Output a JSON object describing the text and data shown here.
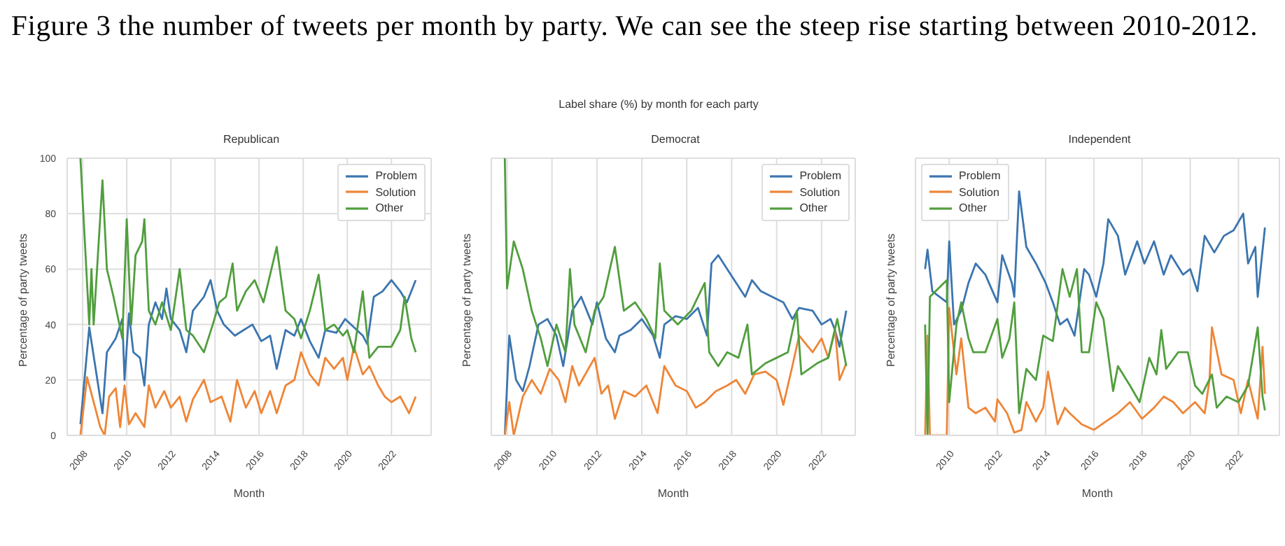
{
  "chart_data": [
    {
      "type": "other",
      "title": "Label share (%) by month for each party",
      "annotations": [
        "Figure 3 the number of tweets per month by party. We can see the steep rise starting between 2010-2012."
      ]
    },
    {
      "type": "line",
      "title": "Republican",
      "xlabel": "Month",
      "ylabel": "Percentage of party tweets",
      "xlim": [
        2007.3,
        2023.8
      ],
      "xticks": [
        2008,
        2010,
        2012,
        2014,
        2016,
        2018,
        2020,
        2022
      ],
      "ylim": [
        0,
        100
      ],
      "yticks": [
        0,
        20,
        40,
        60,
        80,
        100
      ],
      "grid": true,
      "legend": "top right",
      "marker": "none",
      "line_style": "solid",
      "series": [
        {
          "name": "Problem",
          "color": "#3b75af",
          "x": [
            2007.9,
            2008.3,
            2008.9,
            2009.1,
            2009.5,
            2009.8,
            2009.9,
            2010.1,
            2010.3,
            2010.6,
            2010.8,
            2011.0,
            2011.3,
            2011.6,
            2011.8,
            2012.0,
            2012.4,
            2012.7,
            2013.0,
            2013.5,
            2013.8,
            2014.1,
            2014.4,
            2014.9,
            2015.3,
            2015.7,
            2016.1,
            2016.5,
            2016.8,
            2017.2,
            2017.6,
            2017.9,
            2018.3,
            2018.7,
            2019.0,
            2019.5,
            2019.9,
            2020.3,
            2020.7,
            2020.9,
            2021.2,
            2021.6,
            2022.0,
            2022.4,
            2022.7,
            2023.1
          ],
          "values": [
            4,
            39,
            8,
            30,
            35,
            42,
            20,
            44,
            30,
            28,
            18,
            40,
            48,
            42,
            53,
            42,
            38,
            30,
            45,
            50,
            56,
            45,
            40,
            36,
            38,
            40,
            34,
            36,
            24,
            38,
            36,
            42,
            34,
            28,
            38,
            37,
            42,
            39,
            36,
            33,
            50,
            52,
            56,
            52,
            48,
            56
          ]
        },
        {
          "name": "Solution",
          "color": "#ef8536",
          "x": [
            2007.9,
            2008.2,
            2008.5,
            2008.8,
            2009.0,
            2009.2,
            2009.5,
            2009.7,
            2009.9,
            2010.1,
            2010.4,
            2010.8,
            2011.0,
            2011.3,
            2011.7,
            2012.0,
            2012.4,
            2012.7,
            2013.0,
            2013.5,
            2013.8,
            2014.3,
            2014.7,
            2015.0,
            2015.4,
            2015.8,
            2016.1,
            2016.5,
            2016.8,
            2017.2,
            2017.6,
            2017.9,
            2018.3,
            2018.7,
            2019.0,
            2019.4,
            2019.8,
            2020.0,
            2020.3,
            2020.7,
            2021.0,
            2021.4,
            2021.7,
            2022.0,
            2022.4,
            2022.8,
            2023.1
          ],
          "values": [
            0,
            21,
            12,
            3,
            0,
            14,
            17,
            3,
            18,
            4,
            8,
            3,
            18,
            10,
            16,
            10,
            14,
            5,
            13,
            20,
            12,
            14,
            5,
            20,
            10,
            16,
            8,
            16,
            8,
            18,
            20,
            30,
            22,
            18,
            28,
            24,
            28,
            20,
            32,
            22,
            25,
            18,
            14,
            12,
            14,
            8,
            14
          ]
        },
        {
          "name": "Other",
          "color": "#519e3e",
          "x": [
            2007.9,
            2008.1,
            2008.3,
            2008.4,
            2008.5,
            2008.9,
            2009.1,
            2009.4,
            2009.8,
            2010.0,
            2010.2,
            2010.4,
            2010.7,
            2010.8,
            2011.0,
            2011.3,
            2011.6,
            2012.0,
            2012.4,
            2012.7,
            2013.0,
            2013.5,
            2013.9,
            2014.2,
            2014.5,
            2014.8,
            2015.0,
            2015.4,
            2015.8,
            2016.2,
            2016.5,
            2016.8,
            2017.2,
            2017.6,
            2017.9,
            2018.3,
            2018.7,
            2019.0,
            2019.4,
            2019.8,
            2020.0,
            2020.3,
            2020.7,
            2021.0,
            2021.4,
            2022.0,
            2022.4,
            2022.6,
            2022.9,
            2023.1
          ],
          "values": [
            100,
            70,
            40,
            60,
            40,
            92,
            60,
            50,
            35,
            78,
            40,
            65,
            70,
            78,
            45,
            40,
            48,
            38,
            60,
            38,
            36,
            30,
            40,
            48,
            50,
            62,
            45,
            52,
            56,
            48,
            58,
            68,
            45,
            42,
            35,
            45,
            58,
            38,
            40,
            36,
            38,
            30,
            52,
            28,
            32,
            32,
            38,
            50,
            35,
            30
          ]
        }
      ]
    },
    {
      "type": "line",
      "title": "Democrat",
      "xlabel": "Month",
      "ylabel": "Percentage of party tweets",
      "xlim": [
        2007.3,
        2023.5
      ],
      "xticks": [
        2008,
        2010,
        2012,
        2014,
        2016,
        2018,
        2020,
        2022
      ],
      "ylim": [
        0,
        100
      ],
      "yticks": [
        0,
        20,
        40,
        60,
        80,
        100
      ],
      "tick_labels": "x",
      "grid": true,
      "legend": "top right",
      "marker": "none",
      "line_style": "solid",
      "series": [
        {
          "name": "Problem",
          "color": "#3b75af",
          "x": [
            2007.9,
            2008.1,
            2008.4,
            2008.7,
            2009.0,
            2009.4,
            2009.8,
            2010.2,
            2010.5,
            2010.9,
            2011.3,
            2011.8,
            2012.0,
            2012.4,
            2012.8,
            2013.0,
            2013.5,
            2014.0,
            2014.5,
            2014.8,
            2015.0,
            2015.5,
            2016.0,
            2016.5,
            2016.9,
            2017.1,
            2017.4,
            2017.8,
            2018.2,
            2018.6,
            2018.9,
            2019.3,
            2019.8,
            2020.3,
            2020.7,
            2021.0,
            2021.6,
            2022.0,
            2022.4,
            2022.6,
            2022.8,
            2023.1
          ],
          "values": [
            0,
            36,
            20,
            16,
            25,
            40,
            42,
            36,
            25,
            45,
            50,
            40,
            48,
            35,
            30,
            36,
            38,
            42,
            36,
            28,
            40,
            43,
            42,
            46,
            36,
            62,
            65,
            60,
            55,
            50,
            56,
            52,
            50,
            48,
            42,
            46,
            45,
            40,
            42,
            38,
            32,
            45
          ]
        },
        {
          "name": "Solution",
          "color": "#ef8536",
          "x": [
            2007.9,
            2008.1,
            2008.3,
            2008.7,
            2009.1,
            2009.5,
            2009.9,
            2010.3,
            2010.6,
            2010.9,
            2011.2,
            2011.9,
            2012.2,
            2012.5,
            2012.8,
            2013.2,
            2013.7,
            2014.2,
            2014.7,
            2015.0,
            2015.5,
            2016.0,
            2016.4,
            2016.8,
            2017.3,
            2017.8,
            2018.2,
            2018.6,
            2019.0,
            2019.5,
            2020.0,
            2020.3,
            2020.7,
            2021.0,
            2021.6,
            2022.0,
            2022.3,
            2022.6,
            2022.8,
            2023.1
          ],
          "values": [
            0,
            12,
            0,
            14,
            20,
            15,
            24,
            20,
            12,
            25,
            18,
            28,
            15,
            18,
            6,
            16,
            14,
            18,
            8,
            25,
            18,
            16,
            10,
            12,
            16,
            18,
            20,
            15,
            22,
            23,
            20,
            11,
            25,
            36,
            30,
            35,
            28,
            38,
            20,
            26
          ]
        },
        {
          "name": "Other",
          "color": "#519e3e",
          "x": [
            2007.9,
            2008.0,
            2008.3,
            2008.7,
            2009.1,
            2009.5,
            2009.8,
            2010.2,
            2010.6,
            2010.8,
            2011.0,
            2011.5,
            2011.9,
            2012.3,
            2012.8,
            2013.2,
            2013.7,
            2014.2,
            2014.6,
            2014.8,
            2015.0,
            2015.6,
            2016.2,
            2016.8,
            2017.0,
            2017.4,
            2017.8,
            2018.3,
            2018.7,
            2018.9,
            2019.5,
            2020.0,
            2020.5,
            2020.9,
            2021.1,
            2021.8,
            2022.3,
            2022.7,
            2023.1
          ],
          "values": [
            100,
            53,
            70,
            60,
            45,
            35,
            25,
            40,
            30,
            60,
            40,
            30,
            45,
            50,
            68,
            45,
            48,
            42,
            35,
            62,
            45,
            40,
            45,
            55,
            30,
            25,
            30,
            28,
            40,
            22,
            26,
            28,
            30,
            45,
            22,
            26,
            28,
            42,
            25
          ]
        }
      ]
    },
    {
      "type": "line",
      "title": "Independent",
      "xlabel": "Month",
      "ylabel": "Percentage of party tweets",
      "xlim": [
        2008.6,
        2023.7
      ],
      "xticks": [
        2010,
        2012,
        2014,
        2016,
        2018,
        2020,
        2022
      ],
      "ylim": [
        0,
        100
      ],
      "yticks": [
        0,
        20,
        40,
        60,
        80,
        100
      ],
      "tick_labels": "x",
      "grid": true,
      "legend": "top left",
      "marker": "none",
      "line_style": "solid",
      "series": [
        {
          "name": "Problem",
          "color": "#3b75af",
          "x": [
            2009.0,
            2009.1,
            2009.3,
            2009.9,
            2010.0,
            2010.2,
            2010.5,
            2010.8,
            2011.1,
            2011.5,
            2012.0,
            2012.2,
            2012.6,
            2012.7,
            2012.9,
            2013.2,
            2013.6,
            2014.0,
            2014.3,
            2014.6,
            2014.9,
            2015.2,
            2015.6,
            2015.8,
            2016.1,
            2016.4,
            2016.6,
            2017.0,
            2017.3,
            2017.8,
            2018.1,
            2018.5,
            2018.9,
            2019.2,
            2019.7,
            2020.0,
            2020.3,
            2020.6,
            2021.0,
            2021.4,
            2021.8,
            2022.2,
            2022.4,
            2022.7,
            2022.8,
            2023.1
          ],
          "values": [
            60,
            67,
            52,
            48,
            70,
            40,
            45,
            55,
            62,
            58,
            48,
            65,
            55,
            50,
            88,
            68,
            62,
            55,
            48,
            40,
            42,
            36,
            60,
            58,
            50,
            62,
            78,
            72,
            58,
            70,
            62,
            70,
            58,
            65,
            58,
            60,
            52,
            72,
            66,
            72,
            74,
            80,
            62,
            68,
            50,
            75
          ]
        },
        {
          "name": "Solution",
          "color": "#ef8536",
          "x": [
            2009.0,
            2009.1,
            2009.2,
            2009.9,
            2010.0,
            2010.3,
            2010.5,
            2010.8,
            2011.1,
            2011.5,
            2011.9,
            2012.0,
            2012.4,
            2012.7,
            2013.0,
            2013.2,
            2013.6,
            2013.9,
            2014.1,
            2014.5,
            2014.8,
            2015.0,
            2015.5,
            2016.0,
            2016.5,
            2017.0,
            2017.5,
            2018.0,
            2018.5,
            2018.9,
            2019.3,
            2019.7,
            2020.2,
            2020.6,
            2020.8,
            2020.9,
            2021.3,
            2021.8,
            2022.1,
            2022.4,
            2022.8,
            2023.0,
            2023.1
          ],
          "values": [
            0,
            36,
            0,
            0,
            46,
            22,
            35,
            10,
            8,
            10,
            5,
            13,
            8,
            1,
            2,
            12,
            5,
            10,
            23,
            4,
            10,
            8,
            4,
            2,
            5,
            8,
            12,
            6,
            10,
            14,
            12,
            8,
            12,
            8,
            20,
            39,
            22,
            20,
            8,
            20,
            6,
            32,
            15
          ]
        },
        {
          "name": "Other",
          "color": "#519e3e",
          "x": [
            2009.0,
            2009.1,
            2009.2,
            2009.9,
            2010.0,
            2010.3,
            2010.5,
            2010.8,
            2011.0,
            2011.5,
            2012.0,
            2012.2,
            2012.5,
            2012.7,
            2012.9,
            2013.2,
            2013.6,
            2013.9,
            2014.3,
            2014.7,
            2015.0,
            2015.3,
            2015.5,
            2015.8,
            2016.1,
            2016.4,
            2016.8,
            2017.0,
            2017.5,
            2017.9,
            2018.3,
            2018.6,
            2018.8,
            2019.0,
            2019.5,
            2019.9,
            2020.2,
            2020.5,
            2020.9,
            2021.1,
            2021.5,
            2022.0,
            2022.4,
            2022.8,
            2023.0,
            2023.1
          ],
          "values": [
            40,
            0,
            50,
            56,
            12,
            40,
            48,
            35,
            30,
            30,
            42,
            28,
            35,
            48,
            8,
            24,
            20,
            36,
            34,
            60,
            50,
            60,
            30,
            30,
            48,
            42,
            16,
            25,
            18,
            12,
            28,
            22,
            38,
            24,
            30,
            30,
            18,
            15,
            22,
            10,
            14,
            12,
            18,
            39,
            14,
            9
          ]
        }
      ]
    }
  ]
}
